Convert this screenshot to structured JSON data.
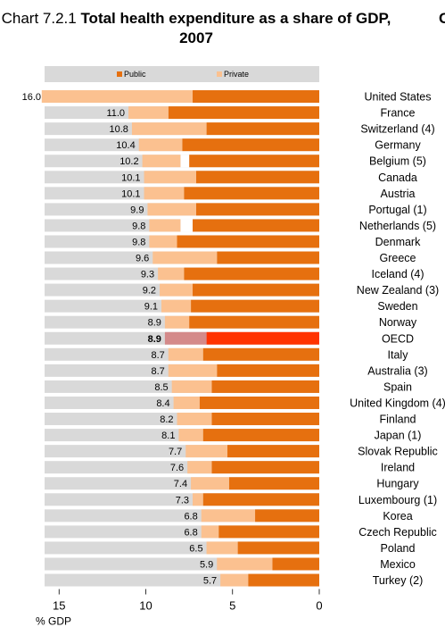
{
  "chart_data": {
    "type": "bar",
    "orientation": "horizontal",
    "stacked": true,
    "title_prefix": "Chart 7.2.1",
    "title_main": "Total health expenditure as a share of GDP, 2007",
    "corner_fragment": "C",
    "xlabel": "% GDP",
    "xlim": [
      0,
      16
    ],
    "x_reversed": true,
    "xticks": [
      15,
      10,
      5,
      0
    ],
    "legend": [
      "Public",
      "Private"
    ],
    "legend_position": "top",
    "colors": {
      "public": "#e6700f",
      "private": "#fbc190",
      "oecd_public": "#ff3300",
      "oecd_private": "#d48a8a",
      "background_band": "#d9d9d9",
      "unspecified": "#ffffff"
    },
    "categories": [
      "United States",
      "France",
      "Switzerland (4)",
      "Germany",
      "Belgium (5)",
      "Canada",
      "Austria",
      "Portugal (1)",
      "Netherlands (5)",
      "Denmark",
      "Greece",
      "Iceland (4)",
      "New Zealand (3)",
      "Sweden",
      "Norway",
      "OECD",
      "Italy",
      "Australia (3)",
      "Spain",
      "United Kingdom (4)",
      "Finland",
      "Japan (1)",
      "Slovak Republic",
      "Ireland",
      "Hungary",
      "Luxembourg (1)",
      "Korea",
      "Czech Republic",
      "Poland",
      "Mexico",
      "Turkey (2)"
    ],
    "totals": [
      "16.0",
      "11.0",
      "10.8",
      "10.4",
      "10.2",
      "10.1",
      "10.1",
      "9.9",
      "9.8",
      "9.8",
      "9.6",
      "9.3",
      "9.2",
      "9.1",
      "8.9",
      "8.9",
      "8.7",
      "8.7",
      "8.5",
      "8.4",
      "8.2",
      "8.1",
      "7.7",
      "7.6",
      "7.4",
      "7.3",
      "6.8",
      "6.8",
      "6.5",
      "5.9",
      "5.7"
    ],
    "series": [
      {
        "name": "Public",
        "values": [
          7.3,
          8.7,
          6.5,
          7.9,
          7.5,
          7.1,
          7.8,
          7.1,
          7.3,
          8.2,
          5.9,
          7.8,
          7.3,
          7.4,
          7.5,
          6.5,
          6.7,
          5.9,
          6.2,
          6.9,
          6.2,
          6.7,
          5.3,
          6.2,
          5.2,
          6.7,
          3.7,
          5.8,
          4.7,
          2.7,
          4.1
        ]
      },
      {
        "name": "Private",
        "values": [
          8.7,
          2.3,
          4.3,
          2.5,
          2.2,
          3.0,
          2.3,
          2.8,
          1.8,
          1.6,
          3.7,
          1.5,
          1.9,
          1.7,
          1.4,
          2.4,
          2.0,
          2.8,
          2.3,
          1.5,
          2.0,
          1.4,
          2.4,
          1.4,
          2.2,
          0.6,
          3.1,
          1.0,
          1.8,
          3.2,
          1.6
        ]
      },
      {
        "name": "",
        "values": [
          0,
          0,
          0,
          0,
          0.5,
          0,
          0,
          0,
          0.7,
          0,
          0,
          0,
          0,
          0,
          0,
          0,
          0,
          0,
          0,
          0,
          0,
          0,
          0,
          0,
          0,
          0,
          0,
          0,
          0,
          0,
          0
        ]
      }
    ],
    "highlight": "OECD"
  }
}
